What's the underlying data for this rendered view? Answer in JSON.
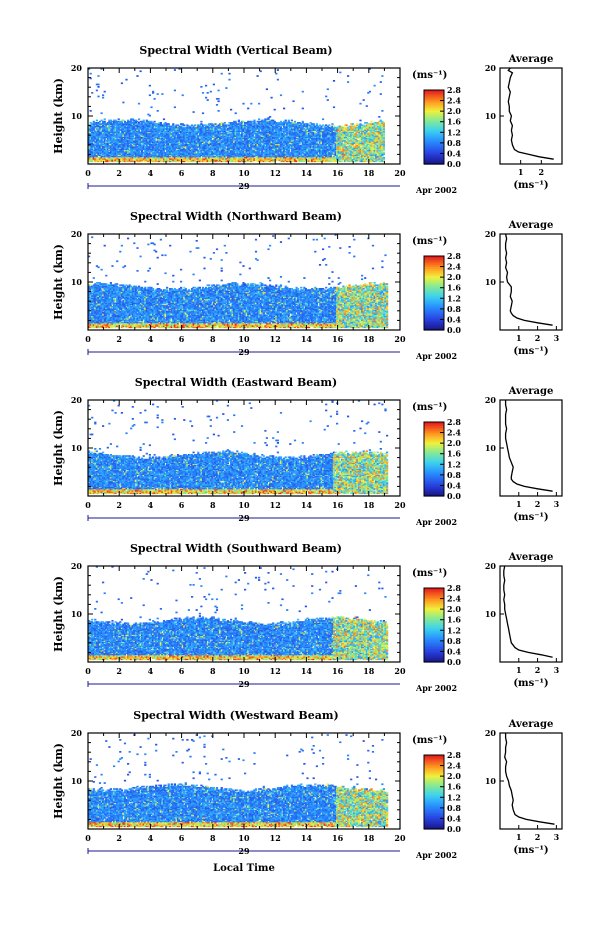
{
  "chart_data": [
    {
      "type": "heatmap",
      "title": "Spectral Width (Vertical Beam)",
      "ylabel": "Height (km)",
      "xlim": [
        0,
        20
      ],
      "ylim": [
        0,
        20
      ],
      "x_ticks": [
        "0",
        "2",
        "4",
        "6",
        "8",
        "10",
        "12",
        "14",
        "16",
        "18",
        "20"
      ],
      "y_ticks": [
        "10",
        "20"
      ],
      "date_day": "29",
      "date_month": "Apr 2002",
      "colorbar": {
        "unit": "(ms⁻¹)",
        "ticks": [
          "2.8",
          "2.4",
          "2.0",
          "1.6",
          "1.2",
          "0.8",
          "0.4",
          "0.0"
        ],
        "range": [
          0,
          2.8
        ]
      },
      "data_end_hour": 19.0,
      "layer_top_km": 8.5,
      "enhanced_start_hour": 15.8,
      "profile": {
        "title": "Average",
        "xlabel": "(ms⁻¹)",
        "x_ticks": [
          "1",
          "2"
        ],
        "xlim": [
          0,
          3
        ],
        "y_ticks": [
          "10",
          "20"
        ],
        "height_km": [
          1.0,
          1.5,
          2,
          2.5,
          3,
          3.5,
          4,
          5,
          6,
          7,
          8,
          9,
          10,
          11,
          12,
          13,
          14,
          15,
          16,
          17,
          18,
          19,
          19.5,
          20
        ],
        "width": [
          2.6,
          1.9,
          1.4,
          0.9,
          0.7,
          0.65,
          0.6,
          0.55,
          0.6,
          0.55,
          0.6,
          0.5,
          0.55,
          0.45,
          0.45,
          0.4,
          0.45,
          0.5,
          0.4,
          0.45,
          0.5,
          0.6,
          0.4,
          0.5
        ]
      }
    },
    {
      "type": "heatmap",
      "title": "Spectral Width (Northward Beam)",
      "ylabel": "Height (km)",
      "xlim": [
        0,
        20
      ],
      "ylim": [
        0,
        20
      ],
      "x_ticks": [
        "0",
        "2",
        "4",
        "6",
        "8",
        "10",
        "12",
        "14",
        "16",
        "18",
        "20"
      ],
      "y_ticks": [
        "10",
        "20"
      ],
      "date_day": "29",
      "date_month": "Apr 2002",
      "colorbar": {
        "unit": "(ms⁻¹)",
        "ticks": [
          "2.8",
          "2.4",
          "2.0",
          "1.6",
          "1.2",
          "0.8",
          "0.4",
          "0.0"
        ],
        "range": [
          0,
          2.8
        ]
      },
      "data_end_hour": 19.2,
      "layer_top_km": 9.0,
      "enhanced_start_hour": 15.8,
      "profile": {
        "title": "Average",
        "xlabel": "(ms⁻¹)",
        "x_ticks": [
          "1",
          "2",
          "3"
        ],
        "xlim": [
          0,
          3.3
        ],
        "y_ticks": [
          "10",
          "20"
        ],
        "height_km": [
          1.0,
          1.5,
          2,
          2.5,
          3,
          3.5,
          4,
          5,
          6,
          7,
          8,
          9,
          10,
          11,
          12,
          13,
          14,
          15,
          16,
          17,
          18,
          19,
          20
        ],
        "width": [
          2.8,
          2.0,
          1.3,
          0.9,
          0.7,
          0.6,
          0.55,
          0.6,
          0.65,
          0.55,
          0.6,
          0.6,
          0.4,
          0.35,
          0.4,
          0.3,
          0.35,
          0.3,
          0.35,
          0.3,
          0.3,
          0.35,
          0.3
        ]
      }
    },
    {
      "type": "heatmap",
      "title": "Spectral Width (Eastward Beam)",
      "ylabel": "Height (km)",
      "xlim": [
        0,
        20
      ],
      "ylim": [
        0,
        20
      ],
      "x_ticks": [
        "0",
        "2",
        "4",
        "6",
        "8",
        "10",
        "12",
        "14",
        "16",
        "18",
        "20"
      ],
      "y_ticks": [
        "10",
        "20"
      ],
      "date_day": "29",
      "date_month": "Apr 2002",
      "colorbar": {
        "unit": "(ms⁻¹)",
        "ticks": [
          "2.8",
          "2.4",
          "2.0",
          "1.6",
          "1.2",
          "0.8",
          "0.4",
          "0.0"
        ],
        "range": [
          0,
          2.8
        ]
      },
      "data_end_hour": 19.2,
      "layer_top_km": 8.5,
      "enhanced_start_hour": 15.6,
      "profile": {
        "title": "Average",
        "xlabel": "(ms⁻¹)",
        "x_ticks": [
          "1",
          "2",
          "3"
        ],
        "xlim": [
          0,
          3.3
        ],
        "y_ticks": [
          "10",
          "20"
        ],
        "height_km": [
          1.0,
          1.5,
          2,
          2.5,
          3,
          3.5,
          4,
          5,
          6,
          7,
          8,
          9,
          10,
          11,
          12,
          13,
          14,
          15,
          16,
          17,
          18,
          19,
          20
        ],
        "width": [
          2.8,
          2.0,
          1.3,
          0.9,
          0.7,
          0.6,
          0.6,
          0.65,
          0.7,
          0.6,
          0.5,
          0.45,
          0.4,
          0.35,
          0.3,
          0.3,
          0.35,
          0.3,
          0.3,
          0.3,
          0.35,
          0.3,
          0.3
        ]
      }
    },
    {
      "type": "heatmap",
      "title": "Spectral Width (Southward Beam)",
      "ylabel": "Height (km)",
      "xlim": [
        0,
        20
      ],
      "ylim": [
        0,
        20
      ],
      "x_ticks": [
        "0",
        "2",
        "4",
        "6",
        "8",
        "10",
        "12",
        "14",
        "16",
        "18",
        "20"
      ],
      "y_ticks": [
        "10",
        "20"
      ],
      "date_day": "29",
      "date_month": "Apr 2002",
      "colorbar": {
        "unit": "(ms⁻¹)",
        "ticks": [
          "2.8",
          "2.4",
          "2.0",
          "1.6",
          "1.2",
          "0.8",
          "0.4",
          "0.0"
        ],
        "range": [
          0,
          2.8
        ]
      },
      "data_end_hour": 19.2,
      "layer_top_km": 8.5,
      "enhanced_start_hour": 15.6,
      "profile": {
        "title": "Average",
        "xlabel": "(ms⁻¹)",
        "x_ticks": [
          "1",
          "2",
          "3"
        ],
        "xlim": [
          0,
          3.3
        ],
        "y_ticks": [
          "10",
          "20"
        ],
        "height_km": [
          1.0,
          1.5,
          2,
          2.5,
          3,
          3.5,
          4,
          5,
          6,
          7,
          8,
          9,
          10,
          11,
          12,
          13,
          14,
          15,
          16,
          17,
          18,
          19,
          20
        ],
        "width": [
          2.8,
          2.2,
          1.5,
          1.0,
          0.8,
          0.7,
          0.6,
          0.55,
          0.5,
          0.45,
          0.4,
          0.35,
          0.3,
          0.25,
          0.25,
          0.2,
          0.25,
          0.2,
          0.2,
          0.25,
          0.2,
          0.2,
          0.25
        ]
      }
    },
    {
      "type": "heatmap",
      "title": "Spectral Width (Westward Beam)",
      "ylabel": "Height (km)",
      "xlabel": "Local Time",
      "xlim": [
        0,
        20
      ],
      "ylim": [
        0,
        20
      ],
      "x_ticks": [
        "0",
        "2",
        "4",
        "6",
        "8",
        "10",
        "12",
        "14",
        "16",
        "18",
        "20"
      ],
      "y_ticks": [
        "10",
        "20"
      ],
      "date_day": "29",
      "date_month": "Apr 2002",
      "colorbar": {
        "unit": "(ms⁻¹)",
        "ticks": [
          "2.8",
          "2.4",
          "2.0",
          "1.6",
          "1.2",
          "0.8",
          "0.4",
          "0.0"
        ],
        "range": [
          0,
          2.8
        ]
      },
      "data_end_hour": 19.2,
      "layer_top_km": 8.5,
      "enhanced_start_hour": 15.8,
      "profile": {
        "title": "Average",
        "xlabel": "(ms⁻¹)",
        "x_ticks": [
          "1",
          "2",
          "3"
        ],
        "xlim": [
          0,
          3.3
        ],
        "y_ticks": [
          "10",
          "20"
        ],
        "height_km": [
          1.0,
          1.5,
          2,
          2.5,
          3,
          3.5,
          4,
          5,
          6,
          7,
          8,
          9,
          10,
          11,
          12,
          13,
          14,
          15,
          16,
          17,
          18,
          19,
          20
        ],
        "width": [
          2.9,
          2.1,
          1.4,
          1.0,
          0.8,
          0.75,
          0.7,
          0.65,
          0.7,
          0.65,
          0.6,
          0.5,
          0.45,
          0.35,
          0.3,
          0.3,
          0.35,
          0.25,
          0.3,
          0.3,
          0.35,
          0.3,
          0.3
        ]
      }
    }
  ]
}
